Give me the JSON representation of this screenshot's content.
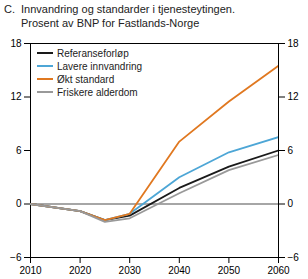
{
  "chart_data": {
    "type": "line",
    "title": "Innvandring og standarder i tjenesteytingen.",
    "subtitle": "Prosent av BNP for Fastlands-Norge",
    "annotations": [
      "C."
    ],
    "x": [
      2010,
      2020,
      2025,
      2030,
      2040,
      2050,
      2060
    ],
    "series": [
      {
        "name": "Referanseforløp",
        "color": "#1a1a1a",
        "values": [
          0,
          -0.8,
          -1.8,
          -1.3,
          1.8,
          4.2,
          6.0
        ]
      },
      {
        "name": "Lavere innvandring",
        "color": "#4da6d6",
        "values": [
          0,
          -0.8,
          -1.8,
          -1.1,
          3.0,
          5.8,
          7.5
        ]
      },
      {
        "name": "Økt standard",
        "color": "#e07820",
        "values": [
          0,
          -0.8,
          -1.8,
          -1.1,
          7.0,
          11.5,
          15.5
        ]
      },
      {
        "name": "Friskere alderdom",
        "color": "#999999",
        "values": [
          0,
          -0.8,
          -2.0,
          -1.6,
          1.2,
          3.8,
          5.5
        ]
      }
    ],
    "xlim": [
      2010,
      2060
    ],
    "xticks": [
      2010,
      2020,
      2030,
      2040,
      2050,
      2060
    ],
    "ylim": [
      -6,
      18
    ],
    "yticks": [
      -6,
      0,
      6,
      12,
      18
    ],
    "grid": false,
    "legend": "upper left"
  }
}
